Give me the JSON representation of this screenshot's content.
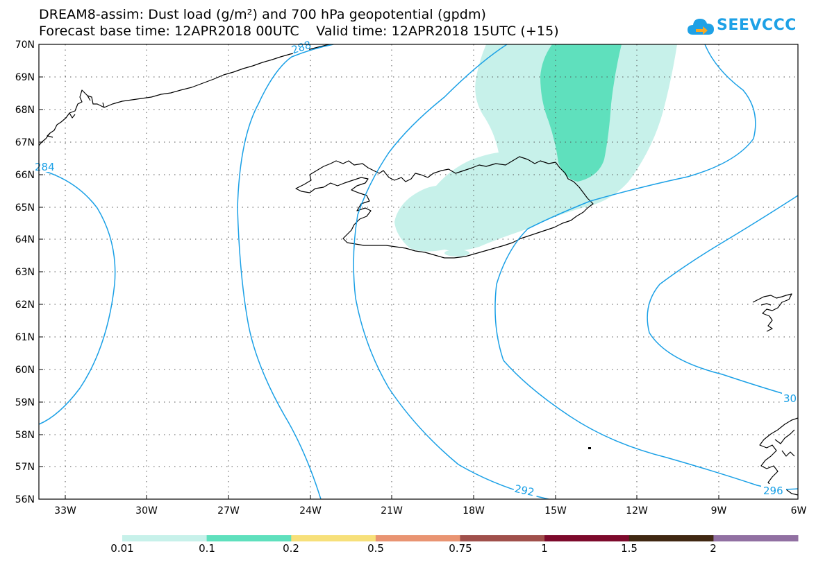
{
  "title": {
    "line1": "DREAM8-assim: Dust load (g/m²) and 700 hPa geopotential (gpdm)",
    "line2": "Forecast base time: 12APR2018 00UTC    Valid time: 12APR2018 15UTC (+15)"
  },
  "logo": {
    "text": "SEEVCCC",
    "icon": "cloud-arrow-icon",
    "color": "#1ea1e6"
  },
  "map": {
    "lat_labels": [
      "70N",
      "69N",
      "68N",
      "67N",
      "66N",
      "65N",
      "64N",
      "63N",
      "62N",
      "61N",
      "60N",
      "59N",
      "58N",
      "57N",
      "56N"
    ],
    "lon_labels": [
      "33W",
      "30W",
      "27W",
      "24W",
      "21W",
      "18W",
      "15W",
      "12W",
      "9W",
      "6W"
    ],
    "contour_labels": [
      "288",
      "284",
      "292",
      "296",
      "30"
    ],
    "contour_color": "#1aa0e6",
    "coast_color": "#000000"
  },
  "colorbar": {
    "colors": [
      "#c7f1ea",
      "#5fe0bd",
      "#f7e07a",
      "#e99472",
      "#a0504b",
      "#7d0a2c",
      "#402812",
      "#9170a2"
    ],
    "labels": [
      "0.01",
      "0.1",
      "0.2",
      "0.5",
      "0.75",
      "1",
      "1.5",
      "2"
    ]
  }
}
